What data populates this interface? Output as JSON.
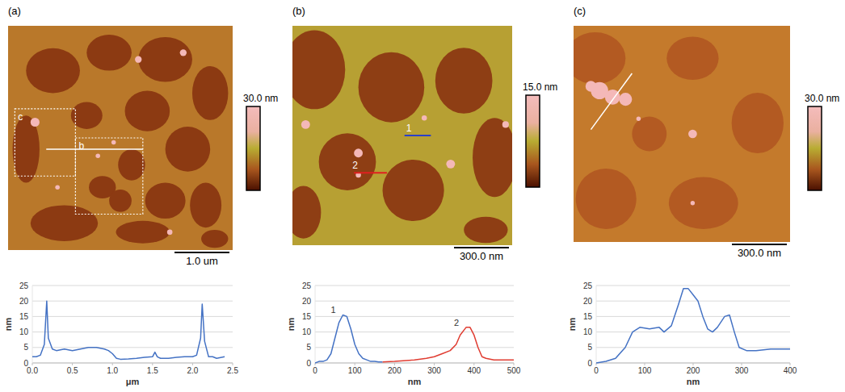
{
  "images": [
    {
      "label": "(a)",
      "colorbar_label": "30.0 nm",
      "scale_bar": "1.0 um",
      "annotations": [
        "c",
        "b"
      ]
    },
    {
      "label": "(b)",
      "colorbar_label": "15.0 nm",
      "scale_bar": "300.0 nm",
      "annotations": [
        "1",
        "2"
      ]
    },
    {
      "label": "(c)",
      "colorbar_label": "30.0 nm",
      "scale_bar": "300.0 nm"
    }
  ],
  "chart_data": [
    {
      "type": "line",
      "xlabel": "μm",
      "ylabel": "nm",
      "grid": true,
      "xlim": [
        0,
        2.5
      ],
      "ylim": [
        0,
        25
      ],
      "xticks": [
        {
          "value": 0,
          "label": "0.0"
        },
        0.5,
        {
          "value": 1,
          "label": "1.0"
        },
        1.5,
        {
          "value": 2,
          "label": "2.0"
        },
        2.5
      ],
      "yticks": [
        0,
        5,
        10,
        15,
        20,
        25
      ],
      "series": [
        {
          "color": "#4472c4",
          "x": [
            0,
            0.05,
            0.1,
            0.15,
            0.18,
            0.2,
            0.25,
            0.3,
            0.4,
            0.5,
            0.6,
            0.7,
            0.8,
            0.9,
            0.95,
            1.0,
            1.05,
            1.1,
            1.2,
            1.3,
            1.4,
            1.5,
            1.53,
            1.56,
            1.6,
            1.7,
            1.8,
            1.9,
            2.0,
            2.05,
            2.1,
            2.12,
            2.15,
            2.2,
            2.25,
            2.3,
            2.4
          ],
          "values": [
            2,
            2,
            2.5,
            6,
            20,
            8,
            4.5,
            4,
            4.5,
            4,
            4.5,
            5,
            5,
            4.5,
            4,
            3,
            1.5,
            1.2,
            1.3,
            1.5,
            1.8,
            2,
            3.5,
            2,
            1.5,
            1.5,
            1.8,
            2,
            2,
            2.5,
            8,
            19,
            7,
            2,
            2,
            1.5,
            2
          ]
        }
      ]
    },
    {
      "type": "line",
      "xlabel": "nm",
      "ylabel": "nm",
      "grid": true,
      "xlim": [
        0,
        500
      ],
      "ylim": [
        0,
        25
      ],
      "xticks": [
        0,
        100,
        200,
        300,
        400,
        500
      ],
      "yticks": [
        0,
        5,
        10,
        15,
        20,
        25
      ],
      "series": [
        {
          "name": "1",
          "color": "#4472c4",
          "x": [
            0,
            10,
            20,
            30,
            40,
            50,
            60,
            70,
            80,
            90,
            100,
            110,
            120,
            130,
            140,
            150,
            160,
            170
          ],
          "values": [
            0,
            0.5,
            0.5,
            1,
            3,
            8,
            13,
            15.5,
            15,
            11,
            6,
            3,
            1.5,
            1,
            0.5,
            0.5,
            0.3,
            0.3
          ]
        },
        {
          "name": "2",
          "color": "#e03c31",
          "x": [
            170,
            200,
            250,
            280,
            300,
            320,
            340,
            355,
            365,
            380,
            390,
            400,
            410,
            420,
            430,
            450,
            470,
            500
          ],
          "values": [
            0.3,
            0.5,
            1,
            1.5,
            2,
            3,
            4,
            6,
            9,
            11.5,
            11.5,
            9,
            5,
            2,
            1.5,
            1,
            1,
            1
          ]
        }
      ]
    },
    {
      "type": "line",
      "xlabel": "nm",
      "ylabel": "nm",
      "grid": true,
      "xlim": [
        0,
        400
      ],
      "ylim": [
        0,
        25
      ],
      "xticks": [
        0,
        100,
        200,
        300,
        400
      ],
      "yticks": [
        0,
        5,
        10,
        15,
        20,
        25
      ],
      "series": [
        {
          "color": "#4472c4",
          "x": [
            0,
            20,
            40,
            60,
            75,
            90,
            110,
            130,
            140,
            155,
            170,
            180,
            190,
            200,
            210,
            220,
            230,
            240,
            250,
            265,
            275,
            285,
            295,
            310,
            330,
            360,
            400
          ],
          "values": [
            0,
            0.5,
            1.5,
            5,
            10,
            11.5,
            11,
            11.5,
            10,
            12,
            19,
            24,
            24,
            22,
            20,
            15,
            11,
            10,
            11.5,
            15,
            15.5,
            10,
            5,
            4,
            4,
            4.5,
            4.5
          ]
        }
      ]
    }
  ]
}
